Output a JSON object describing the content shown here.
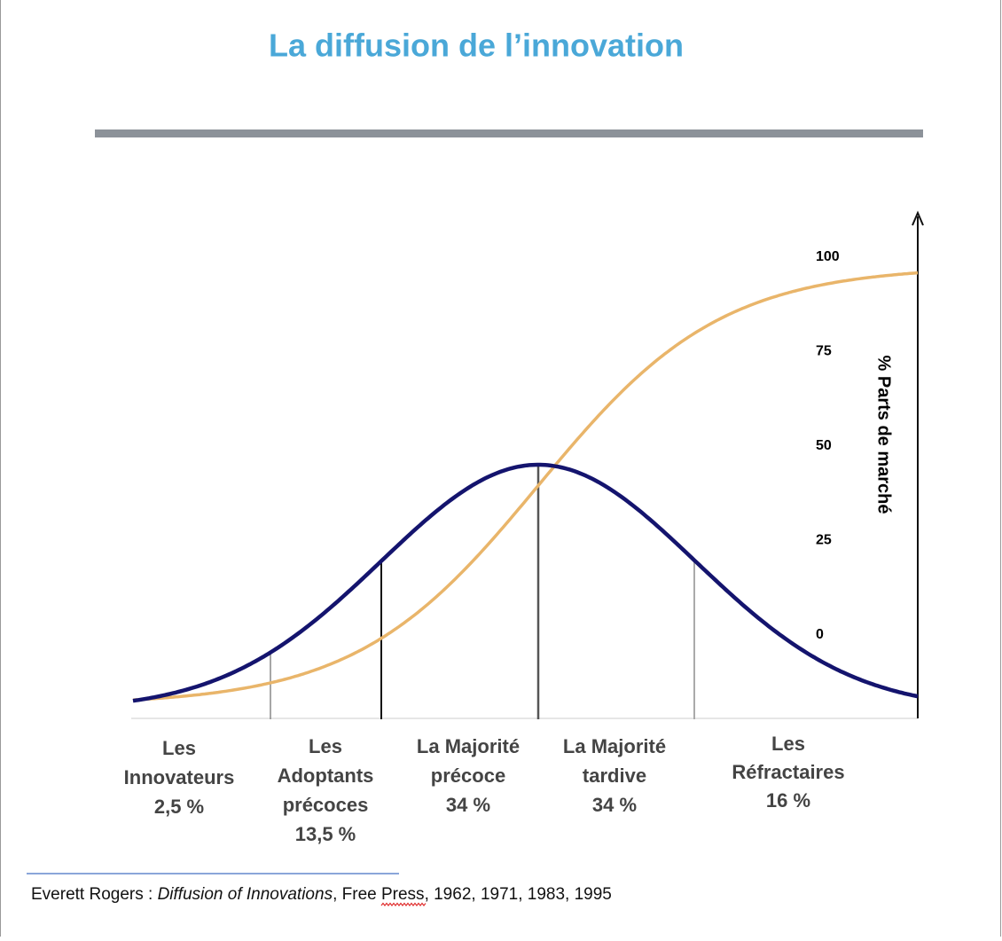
{
  "title": "La diffusion de l’innovation",
  "axis": {
    "label": "% Parts de marché",
    "ticks": [
      "100",
      "75",
      "50",
      "25",
      "0"
    ]
  },
  "segments": [
    {
      "lines": [
        "Les",
        "Innovateurs"
      ],
      "share": "2,5 %"
    },
    {
      "lines": [
        "Les",
        "Adoptants",
        "précoces"
      ],
      "share": "13,5 %"
    },
    {
      "lines": [
        "La Majorité",
        "précoce"
      ],
      "share": "34 %"
    },
    {
      "lines": [
        "La Majorité",
        "tardive"
      ],
      "share": "34 %"
    },
    {
      "lines": [
        "Les",
        "Réfractaires"
      ],
      "share": "16 %"
    }
  ],
  "citation": {
    "author": "Everett Rogers : ",
    "work": "Diffusion of Innovations",
    "publisher": ", Free ",
    "press": "Press",
    "years": ", 1962, 1971, 1983, 1995"
  }
}
